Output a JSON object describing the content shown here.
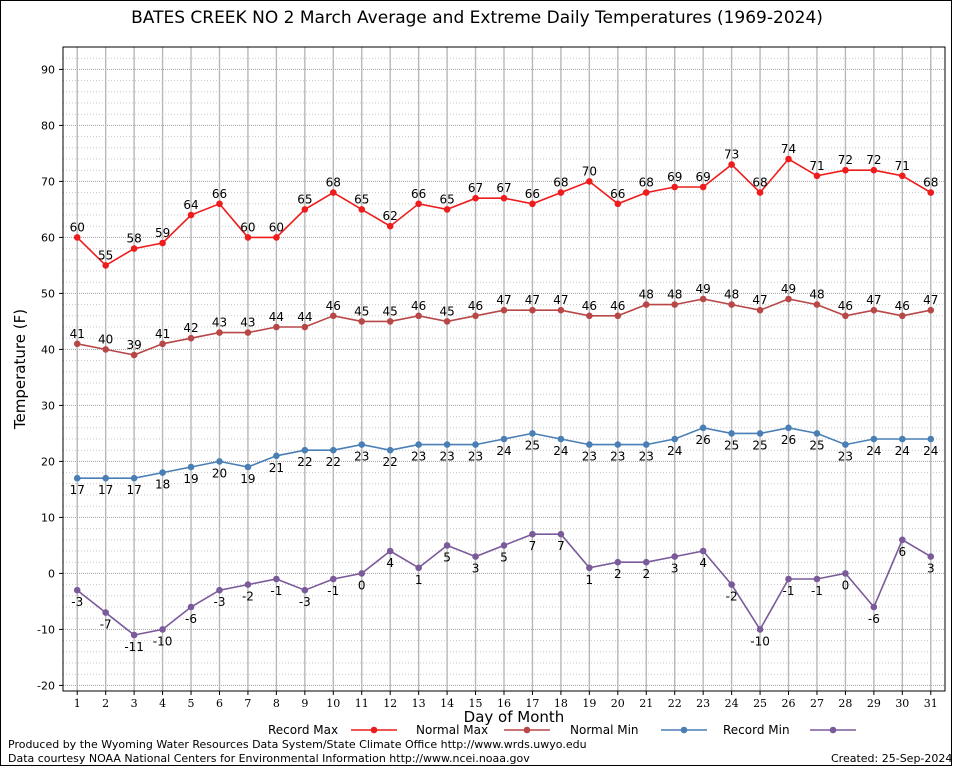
{
  "chart_data": {
    "type": "line",
    "title": "BATES CREEK NO 2 March Average and Extreme Daily Temperatures (1969-2024)",
    "xlabel": "Day of Month",
    "ylabel": "Temperature (F)",
    "xlim": [
      0.5,
      31.5
    ],
    "ylim": [
      -21,
      94
    ],
    "yticks": [
      -20,
      -10,
      0,
      10,
      20,
      30,
      40,
      50,
      60,
      70,
      80,
      90
    ],
    "x": [
      1,
      2,
      3,
      4,
      5,
      6,
      7,
      8,
      9,
      10,
      11,
      12,
      13,
      14,
      15,
      16,
      17,
      18,
      19,
      20,
      21,
      22,
      23,
      24,
      25,
      26,
      27,
      28,
      29,
      30,
      31
    ],
    "grid": true,
    "legend_position": "bottom",
    "series": [
      {
        "name": "Record Max",
        "color": "#ee1c1c",
        "label_position": "above",
        "values": [
          60,
          55,
          58,
          59,
          64,
          66,
          60,
          60,
          65,
          68,
          65,
          62,
          66,
          65,
          67,
          67,
          66,
          68,
          70,
          66,
          68,
          69,
          69,
          73,
          68,
          74,
          71,
          72,
          72,
          71,
          68
        ]
      },
      {
        "name": "Normal Max",
        "color": "#b84848",
        "label_position": "above",
        "values": [
          41,
          40,
          39,
          41,
          42,
          43,
          43,
          44,
          44,
          46,
          45,
          45,
          46,
          45,
          46,
          47,
          47,
          47,
          46,
          46,
          48,
          48,
          49,
          48,
          47,
          49,
          48,
          46,
          47,
          46,
          47
        ]
      },
      {
        "name": "Normal Min",
        "color": "#4a7fb5",
        "label_position": "below",
        "values": [
          17,
          17,
          17,
          18,
          19,
          20,
          19,
          21,
          22,
          22,
          23,
          22,
          23,
          23,
          23,
          24,
          25,
          24,
          23,
          23,
          23,
          24,
          26,
          25,
          25,
          26,
          25,
          23,
          24,
          24,
          24
        ]
      },
      {
        "name": "Record Min",
        "color": "#7a5a9a",
        "label_position": "below",
        "values": [
          -3,
          -7,
          -11,
          -10,
          -6,
          -3,
          -2,
          -1,
          -3,
          -1,
          0,
          4,
          1,
          5,
          3,
          5,
          7,
          7,
          1,
          2,
          2,
          3,
          4,
          -2,
          -10,
          -1,
          -1,
          0,
          -6,
          6,
          3
        ]
      }
    ]
  },
  "footer": {
    "producer": "Produced by the Wyoming Water Resources Data System/State Climate Office http://www.wrds.uwyo.edu",
    "courtesy": "Data courtesy NOAA National Centers for Environmental Information http://www.ncei.noaa.gov",
    "created": "Created:  25-Sep-2024"
  }
}
